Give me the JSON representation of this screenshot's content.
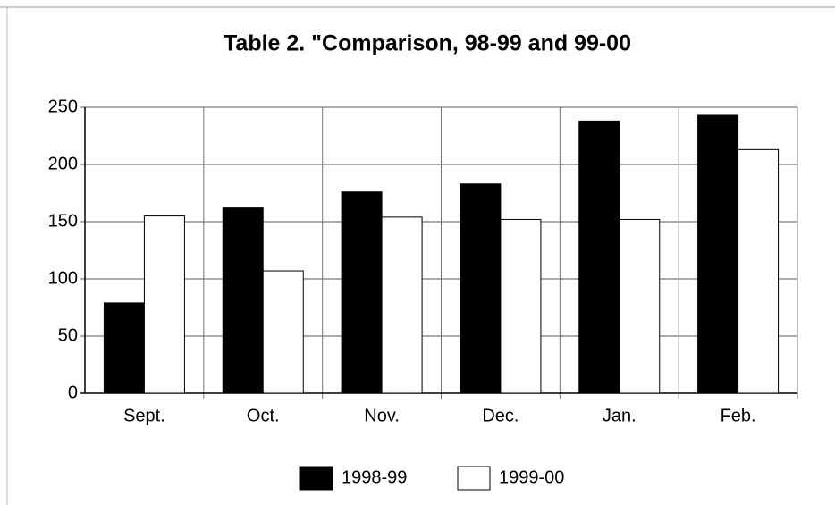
{
  "chart_data": {
    "type": "bar",
    "title": "Table 2. \"Comparison, 98-99 and 99-00",
    "categories": [
      "Sept.",
      "Oct.",
      "Nov.",
      "Dec.",
      "Jan.",
      "Feb."
    ],
    "series": [
      {
        "name": "1998-99",
        "color": "#000000",
        "values": [
          79,
          162,
          176,
          183,
          238,
          243
        ]
      },
      {
        "name": "1999-00",
        "color": "#ffffff",
        "values": [
          155,
          107,
          154,
          152,
          152,
          213
        ]
      }
    ],
    "ylim": [
      0,
      250
    ],
    "yticks": [
      0,
      50,
      100,
      150,
      200,
      250
    ],
    "grid": true,
    "legend": "bottom"
  }
}
